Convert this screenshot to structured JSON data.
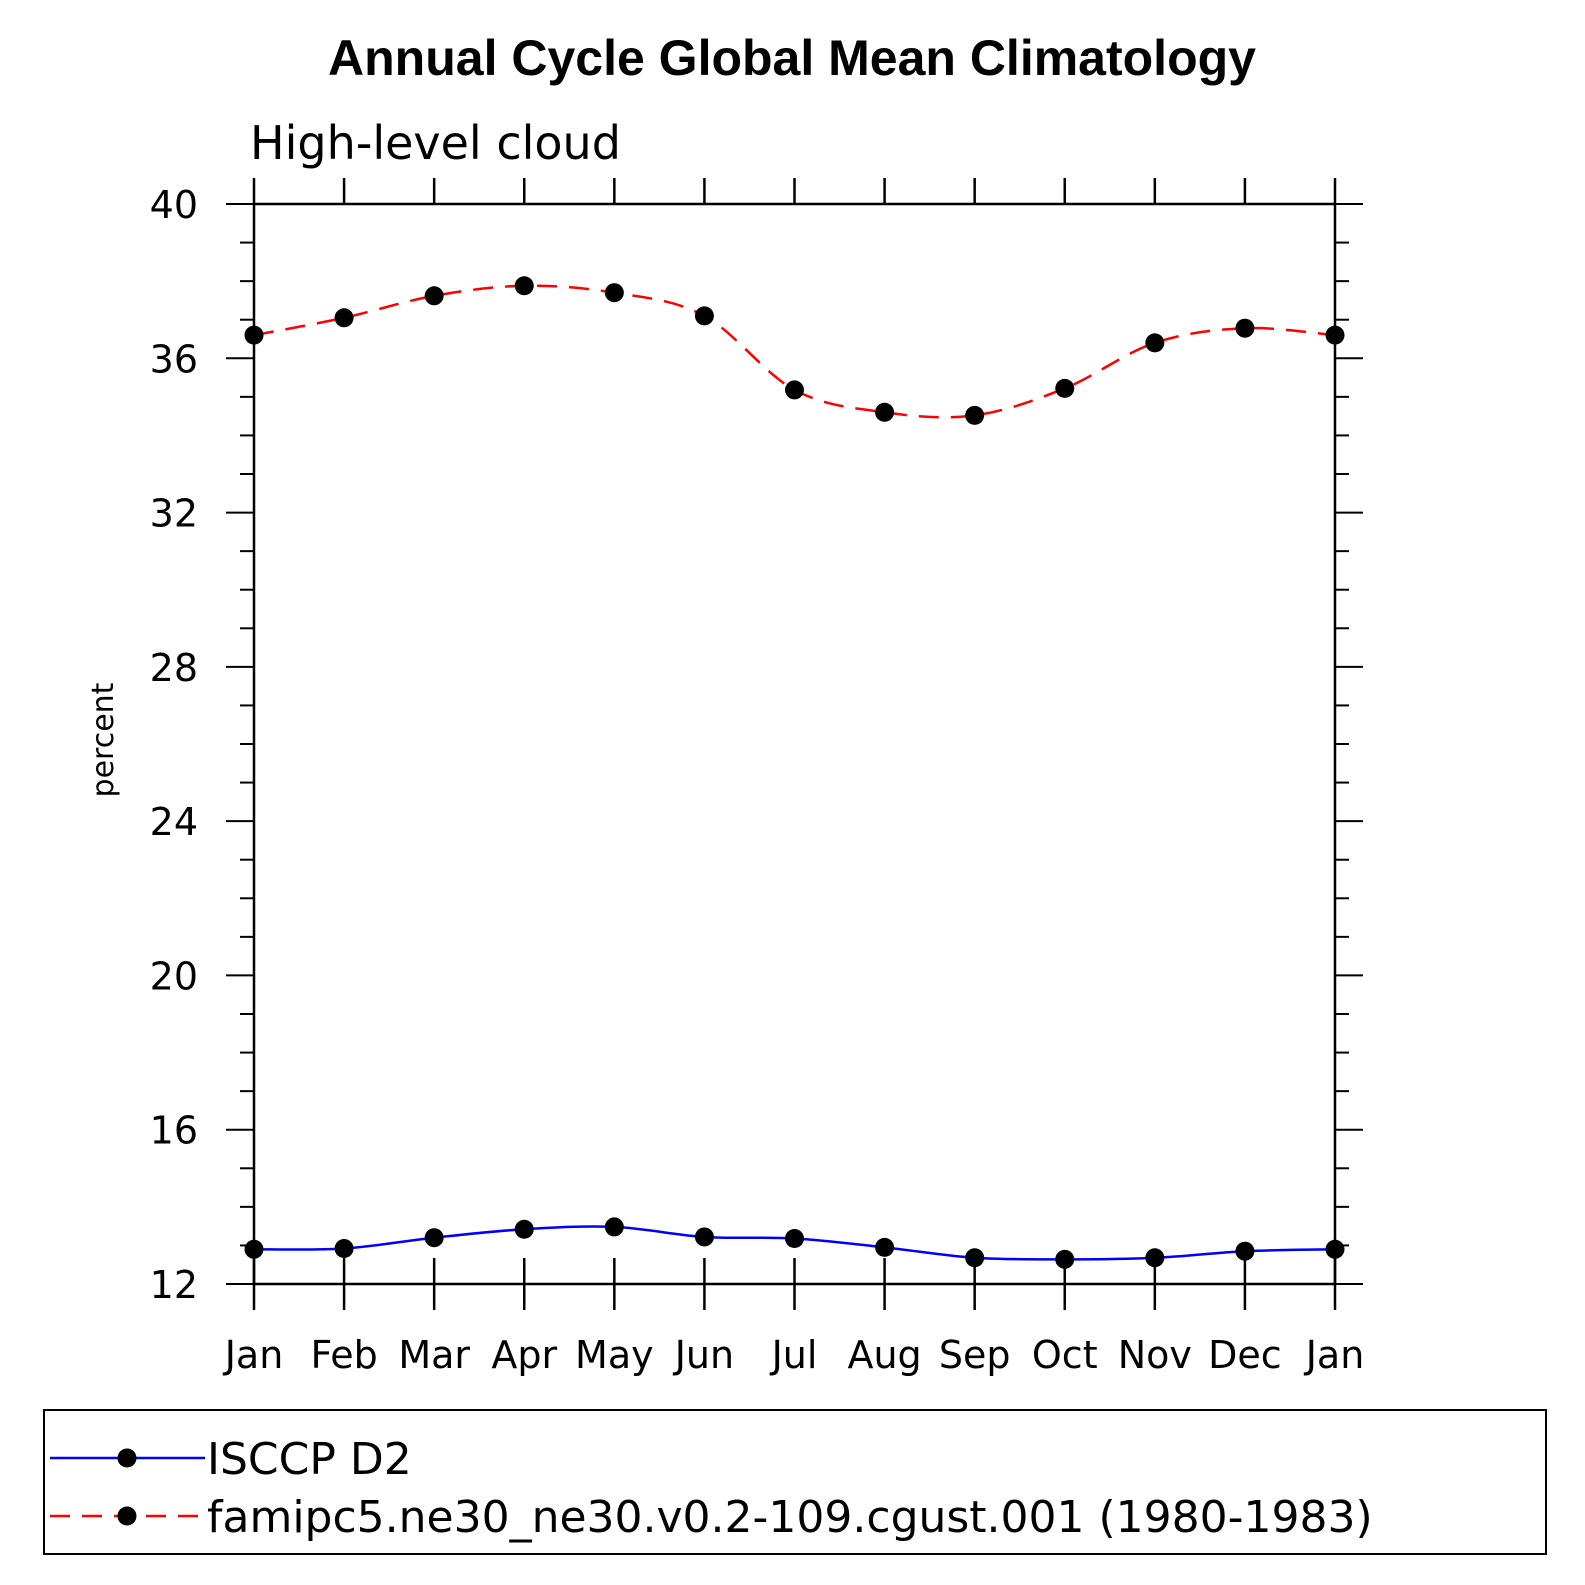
{
  "chart_data": {
    "type": "line",
    "title": "Annual Cycle Global Mean Climatology",
    "subtitle": "High-level cloud",
    "xlabel": "",
    "ylabel": "percent",
    "ylim": [
      12,
      40
    ],
    "yticks": [
      "12",
      "16",
      "20",
      "24",
      "28",
      "32",
      "36",
      "40"
    ],
    "categories": [
      "Jan",
      "Feb",
      "Mar",
      "Apr",
      "May",
      "Jun",
      "Jul",
      "Aug",
      "Sep",
      "Oct",
      "Nov",
      "Dec",
      "Jan"
    ],
    "grid": false,
    "legend_position": "bottom",
    "series": [
      {
        "name": "ISCCP D2",
        "color": "#0000ff",
        "line_style": "solid",
        "marker": "filled-circle",
        "values": [
          12.9,
          12.92,
          13.2,
          13.42,
          13.48,
          13.22,
          13.18,
          12.95,
          12.68,
          12.64,
          12.68,
          12.85,
          12.9
        ]
      },
      {
        "name": "famipc5.ne30_ne30.v0.2-109.cgust.001 (1980-1983)",
        "color": "#ff0000",
        "line_style": "dashed",
        "marker": "filled-circle",
        "values": [
          36.6,
          37.05,
          37.62,
          37.88,
          37.7,
          37.1,
          35.18,
          34.6,
          34.52,
          35.22,
          36.4,
          36.78,
          36.6
        ]
      }
    ]
  }
}
